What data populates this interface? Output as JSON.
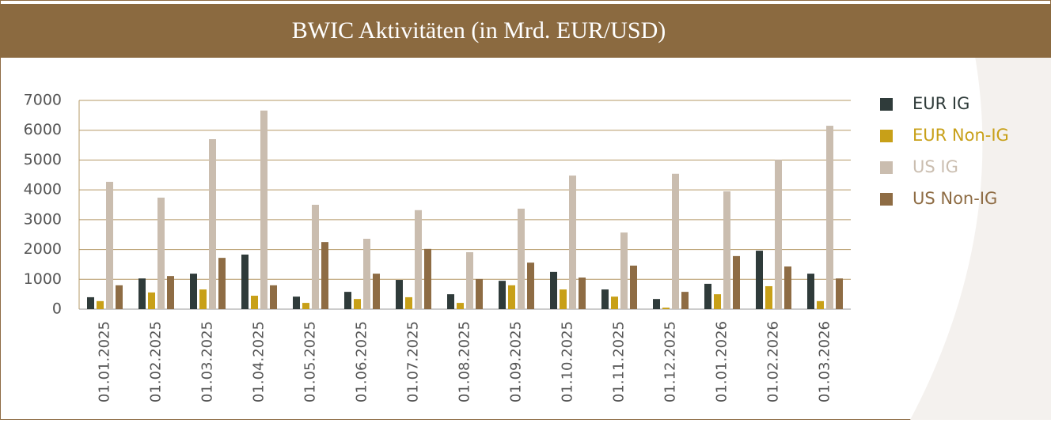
{
  "chart_data": {
    "type": "bar",
    "title": "BWIC Aktivitäten (in Mrd. EUR/USD)",
    "categories": [
      "01.01.2025",
      "01.02.2025",
      "01.03.2025",
      "01.04.2025",
      "01.05.2025",
      "01.06.2025",
      "01.07.2025",
      "01.08.2025",
      "01.09.2025",
      "01.10.2025",
      "01.11.2025",
      "01.12.2025",
      "01.01.2026",
      "01.02.2026",
      "01.03.2026"
    ],
    "series": [
      {
        "name": "EUR IG",
        "color": "#2f3b3a",
        "values": [
          400,
          1030,
          1190,
          1830,
          420,
          580,
          980,
          500,
          950,
          1250,
          660,
          340,
          850,
          1960,
          1190
        ]
      },
      {
        "name": "EUR Non-IG",
        "color": "#c8a018",
        "values": [
          270,
          560,
          660,
          450,
          210,
          340,
          400,
          210,
          800,
          660,
          420,
          50,
          500,
          770,
          270
        ]
      },
      {
        "name": "US IG",
        "color": "#cabdaf",
        "values": [
          4270,
          3740,
          5700,
          6660,
          3500,
          2360,
          3320,
          1910,
          3370,
          4480,
          2570,
          4540,
          3950,
          5010,
          6150
        ]
      },
      {
        "name": "US Non-IG",
        "color": "#8e6c44",
        "values": [
          800,
          1110,
          1720,
          800,
          2250,
          1190,
          2020,
          1010,
          1560,
          1060,
          1460,
          580,
          1780,
          1430,
          1030
        ]
      }
    ],
    "ylim": [
      0,
      7000
    ],
    "yticks": [
      0,
      1000,
      2000,
      3000,
      4000,
      5000,
      6000,
      7000
    ],
    "grid": true,
    "legend": "right"
  }
}
